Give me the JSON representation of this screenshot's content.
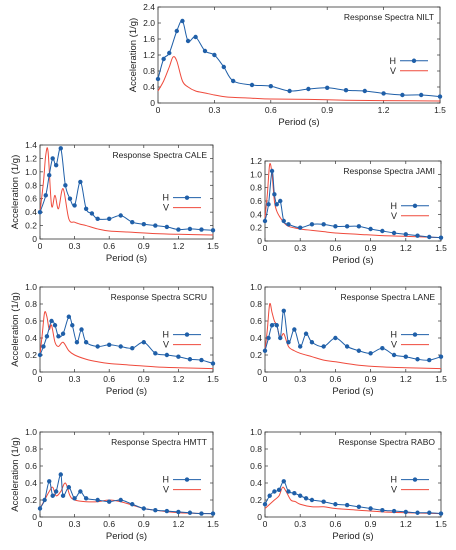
{
  "colors": {
    "h": "#1f5fa8",
    "v": "#ef4a3c",
    "axis": "#333333",
    "grid": "#bbbbbb"
  },
  "chart_data": [
    {
      "type": "line",
      "title": "Response Spectra NILT",
      "xlabel": "Period (s)",
      "ylabel": "Acceleration (1/g)",
      "xlim": [
        0,
        1.5
      ],
      "ylim": [
        0,
        2.4
      ],
      "xticks": [
        0,
        0.3,
        0.6,
        0.9,
        1.2,
        1.5
      ],
      "xtick_labels": [
        "0",
        "0.3",
        "0.6",
        "0.9",
        "1.2",
        "1.5"
      ],
      "yticks": [
        0,
        0.4,
        0.8,
        1.2,
        1.6,
        2.0,
        2.4
      ],
      "ytick_labels": [
        "0",
        "0.4",
        "0.8",
        "1.2",
        "1.6",
        "2.0",
        "2.4"
      ],
      "legend": "right",
      "series": [
        {
          "name": "H",
          "markers": true,
          "x": [
            0,
            0.03,
            0.06,
            0.1,
            0.13,
            0.16,
            0.2,
            0.25,
            0.3,
            0.35,
            0.4,
            0.5,
            0.6,
            0.7,
            0.8,
            0.9,
            1.0,
            1.1,
            1.2,
            1.3,
            1.4,
            1.5
          ],
          "y": [
            0.6,
            1.1,
            1.25,
            1.8,
            2.05,
            1.55,
            1.65,
            1.3,
            1.2,
            0.9,
            0.55,
            0.45,
            0.42,
            0.3,
            0.35,
            0.38,
            0.32,
            0.3,
            0.24,
            0.2,
            0.2,
            0.16
          ]
        },
        {
          "name": "V",
          "markers": false,
          "x": [
            0,
            0.03,
            0.06,
            0.08,
            0.1,
            0.13,
            0.16,
            0.2,
            0.25,
            0.3,
            0.35,
            0.4,
            0.5,
            0.6,
            0.8,
            1.0,
            1.2,
            1.5
          ],
          "y": [
            0.3,
            0.55,
            0.9,
            1.15,
            1.05,
            0.55,
            0.4,
            0.3,
            0.25,
            0.2,
            0.16,
            0.14,
            0.12,
            0.1,
            0.09,
            0.07,
            0.06,
            0.05
          ]
        }
      ]
    },
    {
      "type": "line",
      "title": "Response Spectra CALE",
      "xlabel": "Period (s)",
      "ylabel": "Acceleration (1/g)",
      "xlim": [
        0,
        1.5
      ],
      "ylim": [
        0,
        1.4
      ],
      "xticks": [
        0,
        0.3,
        0.6,
        0.9,
        1.2,
        1.5
      ],
      "xtick_labels": [
        "0",
        "0.3",
        "0.6",
        "0.9",
        "1.2",
        "1.5"
      ],
      "yticks": [
        0,
        0.2,
        0.4,
        0.6,
        0.8,
        1.0,
        1.2,
        1.4
      ],
      "ytick_labels": [
        "0",
        "0.2",
        "0.4",
        "0.6",
        "0.8",
        "1.0",
        "1.2",
        "1.4"
      ],
      "legend": "right",
      "series": [
        {
          "name": "H",
          "markers": true,
          "x": [
            0,
            0.05,
            0.08,
            0.11,
            0.14,
            0.18,
            0.22,
            0.26,
            0.3,
            0.35,
            0.4,
            0.45,
            0.5,
            0.6,
            0.7,
            0.8,
            0.9,
            1.0,
            1.1,
            1.2,
            1.3,
            1.4,
            1.5
          ],
          "y": [
            0.4,
            0.65,
            0.95,
            1.2,
            1.1,
            1.35,
            0.8,
            0.6,
            0.5,
            0.85,
            0.45,
            0.38,
            0.3,
            0.3,
            0.35,
            0.25,
            0.22,
            0.2,
            0.18,
            0.14,
            0.15,
            0.14,
            0.13
          ]
        },
        {
          "name": "V",
          "markers": false,
          "x": [
            0,
            0.03,
            0.05,
            0.07,
            0.1,
            0.13,
            0.16,
            0.2,
            0.25,
            0.3,
            0.35,
            0.4,
            0.5,
            0.6,
            0.8,
            1.0,
            1.2,
            1.5
          ],
          "y": [
            0.4,
            0.85,
            1.25,
            1.3,
            0.5,
            0.65,
            0.45,
            0.75,
            0.3,
            0.25,
            0.22,
            0.2,
            0.15,
            0.12,
            0.1,
            0.08,
            0.07,
            0.06
          ]
        }
      ]
    },
    {
      "type": "line",
      "title": "Response Spectra JAMI",
      "xlabel": "Period (s)",
      "ylabel": "",
      "xlim": [
        0,
        1.5
      ],
      "ylim": [
        0,
        1.2
      ],
      "xticks": [
        0,
        0.3,
        0.6,
        0.9,
        1.2,
        1.5
      ],
      "xtick_labels": [
        "0",
        "0.3",
        "0.6",
        "0.9",
        "1.2",
        "1.5"
      ],
      "yticks": [
        0,
        0.2,
        0.4,
        0.6,
        0.8,
        1.0,
        1.2
      ],
      "ytick_labels": [
        "0",
        "0.2",
        "0.4",
        "0.6",
        "0.8",
        "1.0",
        "1.2"
      ],
      "legend": "right",
      "series": [
        {
          "name": "H",
          "markers": true,
          "x": [
            0,
            0.03,
            0.06,
            0.08,
            0.1,
            0.13,
            0.16,
            0.2,
            0.3,
            0.4,
            0.5,
            0.6,
            0.7,
            0.8,
            0.9,
            1.0,
            1.1,
            1.2,
            1.3,
            1.4,
            1.5
          ],
          "y": [
            0.3,
            0.55,
            1.05,
            0.7,
            0.55,
            0.6,
            0.3,
            0.25,
            0.2,
            0.25,
            0.25,
            0.22,
            0.22,
            0.22,
            0.18,
            0.15,
            0.12,
            0.1,
            0.08,
            0.06,
            0.05
          ]
        },
        {
          "name": "V",
          "markers": false,
          "x": [
            0,
            0.02,
            0.04,
            0.06,
            0.08,
            0.1,
            0.13,
            0.16,
            0.2,
            0.3,
            0.4,
            0.5,
            0.6,
            0.8,
            1.0,
            1.2,
            1.5
          ],
          "y": [
            0.35,
            0.7,
            1.15,
            1.0,
            0.6,
            0.45,
            0.35,
            0.28,
            0.22,
            0.18,
            0.16,
            0.14,
            0.12,
            0.1,
            0.08,
            0.07,
            0.05
          ]
        }
      ]
    },
    {
      "type": "line",
      "title": "Response Spectra SCRU",
      "xlabel": "Period (s)",
      "ylabel": "Acceleration (1/g)",
      "xlim": [
        0,
        1.5
      ],
      "ylim": [
        0,
        1.0
      ],
      "xticks": [
        0,
        0.3,
        0.6,
        0.9,
        1.2,
        1.5
      ],
      "xtick_labels": [
        "0",
        "0.3",
        "0.6",
        "0.9",
        "1.2",
        "1.5"
      ],
      "yticks": [
        0,
        0.2,
        0.4,
        0.6,
        0.8,
        1.0
      ],
      "ytick_labels": [
        "0",
        "0.2",
        "0.4",
        "0.6",
        "0.8",
        "1.0"
      ],
      "legend": "right",
      "series": [
        {
          "name": "H",
          "markers": true,
          "x": [
            0,
            0.03,
            0.06,
            0.1,
            0.13,
            0.16,
            0.2,
            0.25,
            0.28,
            0.32,
            0.36,
            0.4,
            0.5,
            0.6,
            0.7,
            0.8,
            0.9,
            1.0,
            1.1,
            1.2,
            1.3,
            1.4,
            1.5
          ],
          "y": [
            0.2,
            0.3,
            0.42,
            0.6,
            0.55,
            0.42,
            0.45,
            0.65,
            0.55,
            0.35,
            0.5,
            0.35,
            0.3,
            0.32,
            0.3,
            0.28,
            0.35,
            0.22,
            0.2,
            0.18,
            0.15,
            0.14,
            0.1
          ]
        },
        {
          "name": "V",
          "markers": false,
          "x": [
            0,
            0.02,
            0.04,
            0.06,
            0.08,
            0.1,
            0.13,
            0.16,
            0.2,
            0.25,
            0.3,
            0.4,
            0.5,
            0.6,
            0.8,
            1.0,
            1.2,
            1.5
          ],
          "y": [
            0.2,
            0.45,
            0.7,
            0.65,
            0.5,
            0.55,
            0.35,
            0.3,
            0.35,
            0.25,
            0.2,
            0.15,
            0.12,
            0.1,
            0.08,
            0.06,
            0.05,
            0.04
          ]
        }
      ]
    },
    {
      "type": "line",
      "title": "Response Spectra LANE",
      "xlabel": "Period (s)",
      "ylabel": "",
      "xlim": [
        0,
        1.5
      ],
      "ylim": [
        0,
        1.0
      ],
      "xticks": [
        0,
        0.3,
        0.6,
        0.9,
        1.2,
        1.5
      ],
      "xtick_labels": [
        "0",
        "0.3",
        "0.6",
        "0.9",
        "1.2",
        "1.5"
      ],
      "yticks": [
        0,
        0.2,
        0.4,
        0.6,
        0.8,
        1.0
      ],
      "ytick_labels": [
        "0",
        "0.2",
        "0.4",
        "0.6",
        "0.8",
        "1.0"
      ],
      "legend": "right",
      "series": [
        {
          "name": "H",
          "markers": true,
          "x": [
            0,
            0.03,
            0.06,
            0.1,
            0.13,
            0.16,
            0.2,
            0.25,
            0.3,
            0.35,
            0.4,
            0.5,
            0.6,
            0.7,
            0.8,
            0.9,
            1.0,
            1.1,
            1.2,
            1.3,
            1.4,
            1.5
          ],
          "y": [
            0.25,
            0.4,
            0.55,
            0.55,
            0.4,
            0.72,
            0.35,
            0.5,
            0.3,
            0.45,
            0.35,
            0.3,
            0.4,
            0.3,
            0.25,
            0.22,
            0.28,
            0.2,
            0.18,
            0.15,
            0.14,
            0.18
          ]
        },
        {
          "name": "V",
          "markers": false,
          "x": [
            0,
            0.02,
            0.04,
            0.06,
            0.08,
            0.1,
            0.13,
            0.16,
            0.2,
            0.25,
            0.3,
            0.4,
            0.5,
            0.6,
            0.8,
            1.0,
            1.2,
            1.5
          ],
          "y": [
            0.25,
            0.5,
            0.8,
            0.7,
            0.6,
            0.55,
            0.4,
            0.45,
            0.3,
            0.25,
            0.22,
            0.18,
            0.14,
            0.12,
            0.08,
            0.06,
            0.05,
            0.04
          ]
        }
      ]
    },
    {
      "type": "line",
      "title": "Response Spectra HMTT",
      "xlabel": "Period (s)",
      "ylabel": "Acceleration (1/g)",
      "xlim": [
        0,
        1.5
      ],
      "ylim": [
        0,
        1.0
      ],
      "xticks": [
        0,
        0.3,
        0.6,
        0.9,
        1.2,
        1.5
      ],
      "xtick_labels": [
        "0",
        "0.3",
        "0.6",
        "0.9",
        "1.2",
        "1.5"
      ],
      "yticks": [
        0,
        0.2,
        0.4,
        0.6,
        0.8,
        1.0
      ],
      "ytick_labels": [
        "0",
        "0.2",
        "0.4",
        "0.6",
        "0.8",
        "1.0"
      ],
      "legend": "right",
      "series": [
        {
          "name": "H",
          "markers": true,
          "x": [
            0,
            0.04,
            0.08,
            0.11,
            0.14,
            0.18,
            0.2,
            0.25,
            0.3,
            0.35,
            0.4,
            0.5,
            0.6,
            0.7,
            0.8,
            0.9,
            1.0,
            1.1,
            1.2,
            1.3,
            1.4,
            1.5
          ],
          "y": [
            0.1,
            0.2,
            0.42,
            0.25,
            0.3,
            0.5,
            0.25,
            0.35,
            0.22,
            0.3,
            0.22,
            0.2,
            0.18,
            0.2,
            0.15,
            0.1,
            0.08,
            0.07,
            0.06,
            0.05,
            0.04,
            0.04
          ]
        },
        {
          "name": "V",
          "markers": false,
          "x": [
            0,
            0.04,
            0.08,
            0.11,
            0.14,
            0.18,
            0.22,
            0.26,
            0.3,
            0.4,
            0.5,
            0.6,
            0.7,
            0.8,
            0.9,
            1.0,
            1.2,
            1.5
          ],
          "y": [
            0.1,
            0.2,
            0.3,
            0.35,
            0.25,
            0.3,
            0.4,
            0.25,
            0.2,
            0.18,
            0.18,
            0.2,
            0.18,
            0.14,
            0.1,
            0.08,
            0.05,
            0.04
          ]
        }
      ]
    },
    {
      "type": "line",
      "title": "Response Spectra RABO",
      "xlabel": "Period (s)",
      "ylabel": "",
      "xlim": [
        0,
        1.5
      ],
      "ylim": [
        0,
        1.0
      ],
      "xticks": [
        0,
        0.3,
        0.6,
        0.9,
        1.2,
        1.5
      ],
      "xtick_labels": [
        "0",
        "0.3",
        "0.6",
        "0.9",
        "1.2",
        "1.5"
      ],
      "yticks": [
        0,
        0.2,
        0.4,
        0.6,
        0.8,
        1.0
      ],
      "ytick_labels": [
        "0",
        "0.2",
        "0.4",
        "0.6",
        "0.8",
        "1.0"
      ],
      "legend": "right",
      "series": [
        {
          "name": "H",
          "markers": true,
          "x": [
            0,
            0.04,
            0.08,
            0.12,
            0.16,
            0.2,
            0.25,
            0.3,
            0.35,
            0.4,
            0.5,
            0.6,
            0.7,
            0.8,
            0.9,
            1.0,
            1.1,
            1.2,
            1.3,
            1.4,
            1.5
          ],
          "y": [
            0.15,
            0.25,
            0.3,
            0.32,
            0.42,
            0.3,
            0.28,
            0.25,
            0.22,
            0.2,
            0.18,
            0.15,
            0.14,
            0.12,
            0.1,
            0.08,
            0.07,
            0.06,
            0.05,
            0.05,
            0.04
          ]
        },
        {
          "name": "V",
          "markers": false,
          "x": [
            0,
            0.04,
            0.08,
            0.12,
            0.15,
            0.18,
            0.22,
            0.26,
            0.3,
            0.4,
            0.5,
            0.6,
            0.8,
            1.0,
            1.2,
            1.5
          ],
          "y": [
            0.1,
            0.15,
            0.2,
            0.25,
            0.35,
            0.3,
            0.2,
            0.18,
            0.15,
            0.12,
            0.12,
            0.1,
            0.08,
            0.06,
            0.05,
            0.04
          ]
        }
      ]
    }
  ]
}
